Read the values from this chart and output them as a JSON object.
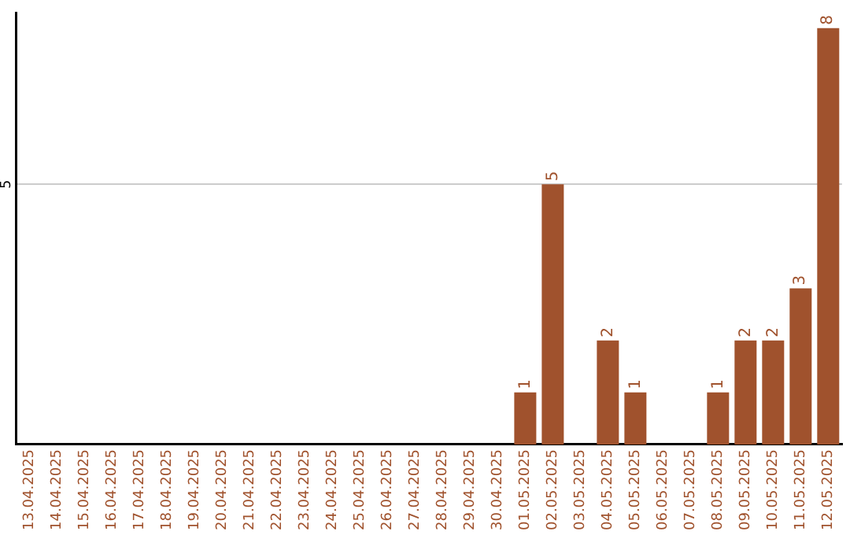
{
  "chart_data": {
    "type": "bar",
    "categories": [
      "13.04.2025",
      "14.04.2025",
      "15.04.2025",
      "16.04.2025",
      "17.04.2025",
      "18.04.2025",
      "19.04.2025",
      "20.04.2025",
      "21.04.2025",
      "22.04.2025",
      "23.04.2025",
      "24.04.2025",
      "25.04.2025",
      "26.04.2025",
      "27.04.2025",
      "28.04.2025",
      "29.04.2025",
      "30.04.2025",
      "01.05.2025",
      "02.05.2025",
      "03.05.2025",
      "04.05.2025",
      "05.05.2025",
      "06.05.2025",
      "07.05.2025",
      "08.05.2025",
      "09.05.2025",
      "10.05.2025",
      "11.05.2025",
      "12.05.2025"
    ],
    "values": [
      null,
      null,
      null,
      null,
      null,
      null,
      null,
      null,
      null,
      null,
      null,
      null,
      null,
      null,
      null,
      null,
      null,
      null,
      1,
      5,
      null,
      2,
      1,
      null,
      null,
      1,
      2,
      2,
      3,
      8
    ],
    "data_labels": true,
    "color": "#a0522d",
    "ylim": [
      0,
      8.3
    ],
    "yticks": [
      5
    ],
    "grid": "y",
    "legend": false
  }
}
